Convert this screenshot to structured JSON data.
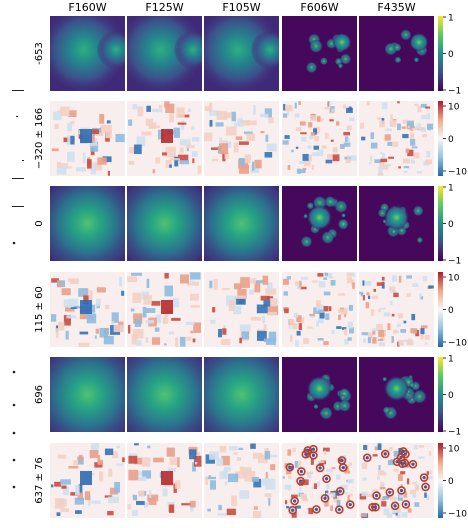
{
  "columns": [
    "F160W",
    "F125W",
    "F105W",
    "F606W",
    "F435W"
  ],
  "rows": [
    {
      "label": "-653",
      "kind": "image"
    },
    {
      "label": "−320 ± 166",
      "kind": "residual"
    },
    {
      "label": "0",
      "kind": "image"
    },
    {
      "label": "115 ± 60",
      "kind": "residual"
    },
    {
      "label": "696",
      "kind": "image"
    },
    {
      "label": "637 ± 76",
      "kind": "residual"
    }
  ],
  "colorbars": {
    "image": {
      "colormap": "viridis",
      "ticks": [
        "1",
        "0",
        "−1"
      ]
    },
    "residual": {
      "colormap": "RdBu",
      "ticks": [
        "10",
        "0",
        "−10"
      ]
    }
  },
  "colors": {
    "viridis_low": "#440154",
    "viridis_mid": "#21918c",
    "viridis_high": "#fde725",
    "rdbu_low": "#2166ac",
    "rdbu_mid": "#f7f7f7",
    "rdbu_high": "#b2182b"
  }
}
